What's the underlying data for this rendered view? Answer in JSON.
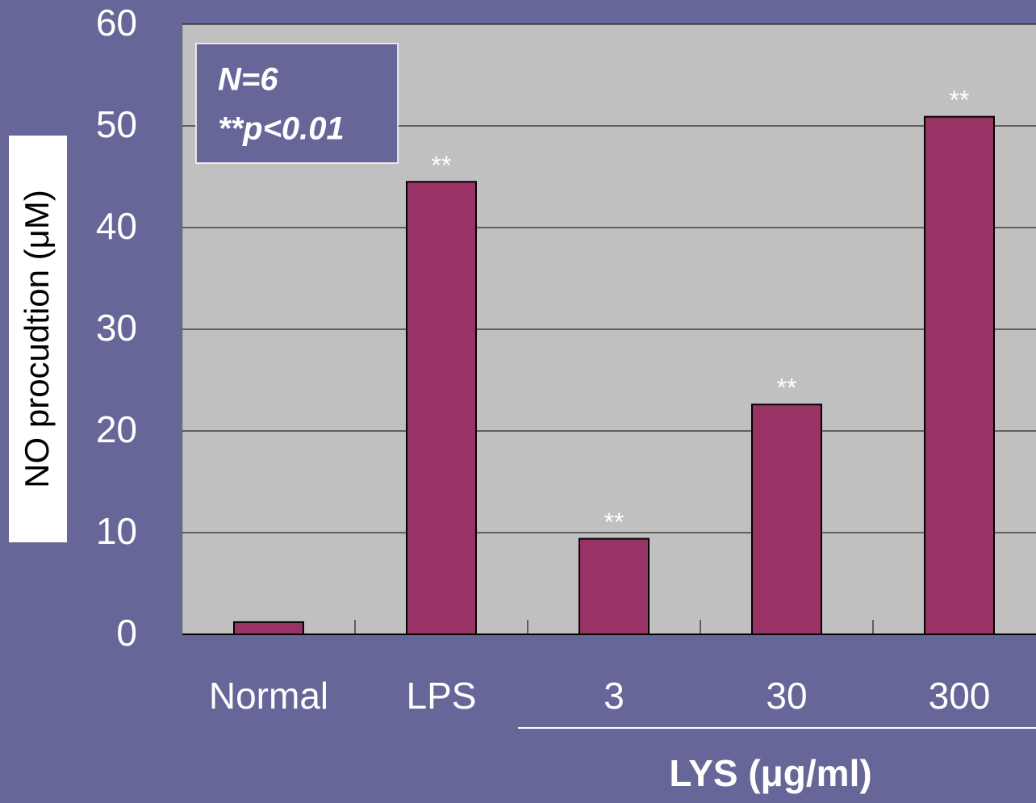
{
  "chart_data": {
    "type": "bar",
    "y_axis_label": "NO procudtion (μM)",
    "x_group_label": "LYS (μg/ml)",
    "annotation_box": [
      "N=6",
      "**p<0.01"
    ],
    "categories": [
      "Normal",
      "LPS",
      "3",
      "30",
      "300"
    ],
    "values": [
      1.2,
      44.5,
      9.4,
      22.6,
      50.9
    ],
    "significance": [
      null,
      "**",
      "**",
      "**",
      "**"
    ],
    "color": "#993366",
    "ylim": [
      0,
      60
    ],
    "yticks": [
      0,
      10,
      20,
      30,
      40,
      50,
      60
    ],
    "grid": true
  }
}
